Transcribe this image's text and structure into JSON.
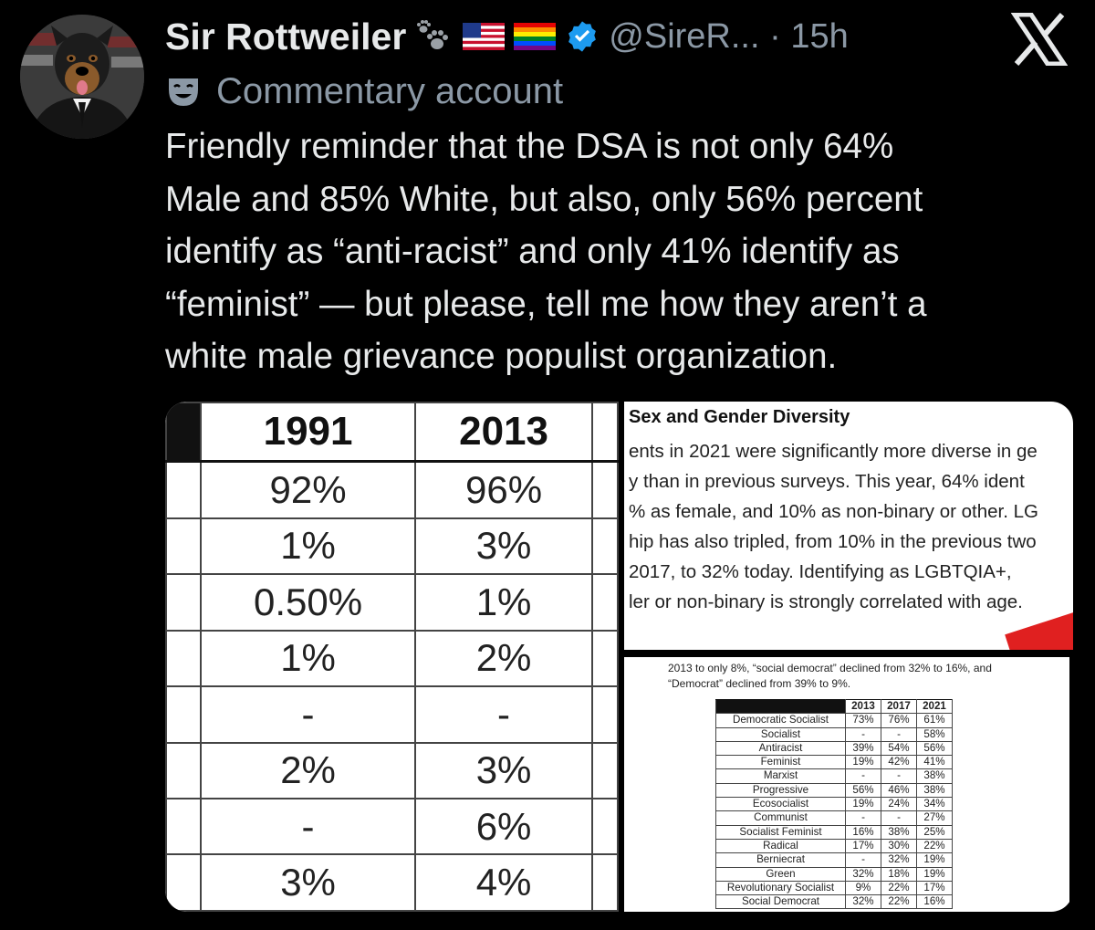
{
  "tweet": {
    "author_name": "Sir Rottweiler",
    "handle_time": "@SireR... · 15h",
    "label": "Commentary account",
    "text": "Friendly reminder that the DSA is not only 64%\nMale and 85% White, but also, only 56% percent\nidentify as “anti-racist” and only 41% identify as\n“feminist” — but please, tell me how they aren’t a\nwhite male grievance populist organization.",
    "icons": [
      "paw-prints-icon",
      "us-flag-icon",
      "rainbow-flag-icon",
      "verified-badge-icon",
      "theater-mask-icon",
      "x-logo-icon"
    ],
    "colors": {
      "background": "#000000",
      "text": "#e7e9ea",
      "secondary": "#8b98a5",
      "verified": "#1d9bf0"
    }
  },
  "media": {
    "left_table": {
      "headers": [
        "1991",
        "2013"
      ],
      "rows": [
        [
          "92%",
          "96%"
        ],
        [
          "1%",
          "3%"
        ],
        [
          "0.50%",
          "1%"
        ],
        [
          "1%",
          "2%"
        ],
        [
          "-",
          "-"
        ],
        [
          "2%",
          "3%"
        ],
        [
          "-",
          "6%"
        ],
        [
          "3%",
          "4%"
        ]
      ]
    },
    "diversity_excerpt": {
      "title": "Sex and Gender Diversity",
      "text": "ents in 2021 were significantly more diverse in ge\ny than in previous surveys. This year, 64% ident\n% as female, and 10% as non-binary or other.  LG\nhip has also tripled, from 10% in the previous two\n 2017, to 32% today. Identifying as LGBTQIA+,\nler or non-binary is strongly correlated with age."
    },
    "ideology_table": {
      "caption": "2013 to only 8%, “social democrat” declined from 32% to 16%, and\n“Democrat” declined from 39% to 9%.",
      "years": [
        "2013",
        "2017",
        "2021"
      ],
      "rows": [
        {
          "label": "Democratic Socialist",
          "values": [
            "73%",
            "76%",
            "61%"
          ]
        },
        {
          "label": "Socialist",
          "values": [
            "-",
            "-",
            "58%"
          ]
        },
        {
          "label": "Antiracist",
          "values": [
            "39%",
            "54%",
            "56%"
          ]
        },
        {
          "label": "Feminist",
          "values": [
            "19%",
            "42%",
            "41%"
          ]
        },
        {
          "label": "Marxist",
          "values": [
            "-",
            "-",
            "38%"
          ]
        },
        {
          "label": "Progressive",
          "values": [
            "56%",
            "46%",
            "38%"
          ]
        },
        {
          "label": "Ecosocialist",
          "values": [
            "19%",
            "24%",
            "34%"
          ]
        },
        {
          "label": "Communist",
          "values": [
            "-",
            "-",
            "27%"
          ]
        },
        {
          "label": "Socialist Feminist",
          "values": [
            "16%",
            "38%",
            "25%"
          ]
        },
        {
          "label": "Radical",
          "values": [
            "17%",
            "30%",
            "22%"
          ]
        },
        {
          "label": "Berniecrat",
          "values": [
            "-",
            "32%",
            "19%"
          ]
        },
        {
          "label": "Green",
          "values": [
            "32%",
            "18%",
            "19%"
          ]
        },
        {
          "label": "Revolutionary Socialist",
          "values": [
            "9%",
            "22%",
            "17%"
          ]
        },
        {
          "label": "Social Democrat",
          "values": [
            "32%",
            "22%",
            "16%"
          ]
        }
      ]
    }
  }
}
